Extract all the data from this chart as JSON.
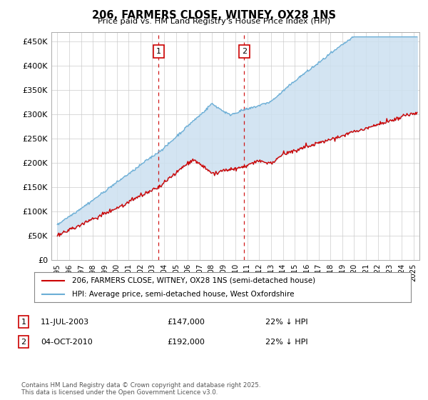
{
  "title": "206, FARMERS CLOSE, WITNEY, OX28 1NS",
  "subtitle": "Price paid vs. HM Land Registry's House Price Index (HPI)",
  "ylabel_ticks": [
    "£0",
    "£50K",
    "£100K",
    "£150K",
    "£200K",
    "£250K",
    "£300K",
    "£350K",
    "£400K",
    "£450K"
  ],
  "ytick_vals": [
    0,
    50000,
    100000,
    150000,
    200000,
    250000,
    300000,
    350000,
    400000,
    450000
  ],
  "ylim": [
    0,
    470000
  ],
  "xlim_start": 1994.5,
  "xlim_end": 2025.5,
  "legend_line1": "206, FARMERS CLOSE, WITNEY, OX28 1NS (semi-detached house)",
  "legend_line2": "HPI: Average price, semi-detached house, West Oxfordshire",
  "marker1_x": 2003.53,
  "marker1_y": 147000,
  "marker1_label": "11-JUL-2003",
  "marker1_price": "£147,000",
  "marker1_hpi": "22% ↓ HPI",
  "marker2_x": 2010.75,
  "marker2_y": 192000,
  "marker2_label": "04-OCT-2010",
  "marker2_price": "£192,000",
  "marker2_hpi": "22% ↓ HPI",
  "hpi_color": "#6baed6",
  "price_color": "#cc0000",
  "shade_color": "#cce0f0",
  "grid_color": "#cccccc",
  "footnote": "Contains HM Land Registry data © Crown copyright and database right 2025.\nThis data is licensed under the Open Government Licence v3.0.",
  "background_color": "#ffffff",
  "box_color": "#cc0000"
}
